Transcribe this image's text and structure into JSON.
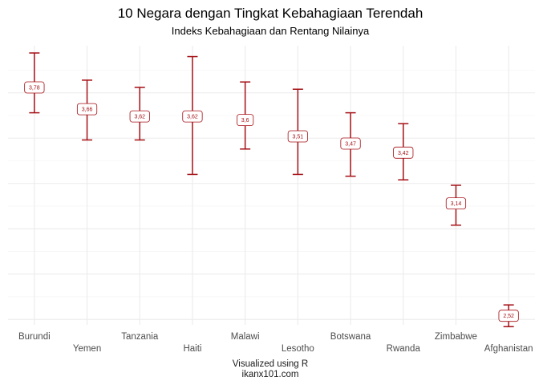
{
  "chart_data": {
    "type": "errorbar",
    "title": "10 Negara dengan Tingkat Kebahagiaan Terendah",
    "subtitle": "Indeks Kebahagiaan dan Rentang Nilainya",
    "caption_line1": "Visualized using R",
    "caption_line2": "ikanx101.com",
    "categories": [
      "Burundi",
      "Yemen",
      "Tanzania",
      "Haiti",
      "Malawi",
      "Lesotho",
      "Botswana",
      "Rwanda",
      "Zimbabwe",
      "Afghanistan"
    ],
    "values": [
      3.78,
      3.66,
      3.62,
      3.62,
      3.6,
      3.51,
      3.47,
      3.42,
      3.14,
      2.52
    ],
    "value_labels": [
      "3,78",
      "3,66",
      "3,62",
      "3,62",
      "3,6",
      "3,51",
      "3,47",
      "3,42",
      "3,14",
      "2,52"
    ],
    "lower": [
      3.64,
      3.49,
      3.49,
      3.3,
      3.44,
      3.3,
      3.29,
      3.27,
      3.02,
      2.46
    ],
    "upper": [
      3.97,
      3.82,
      3.78,
      3.95,
      3.81,
      3.77,
      3.64,
      3.58,
      3.24,
      2.58
    ],
    "ylim": [
      2.47,
      4.01
    ],
    "y_axis_ticks_shown": false,
    "grid": true,
    "color": "#a50f15"
  }
}
